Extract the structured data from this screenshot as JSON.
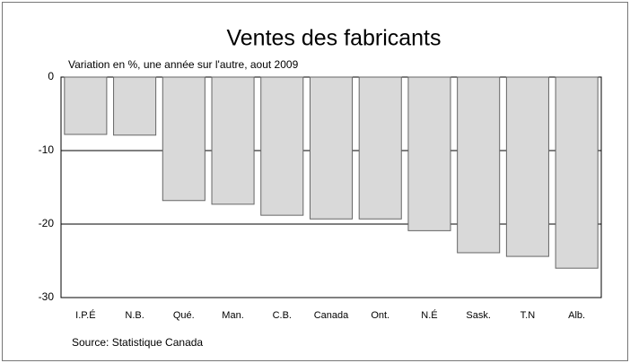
{
  "chart_data": {
    "type": "bar",
    "title": "Ventes des fabricants",
    "subtitle": "Variation en %, une année sur l'autre, aout 2009",
    "source": "Source: Statistique Canada",
    "categories": [
      "I.P.É",
      "N.B.",
      "Qué.",
      "Man.",
      "C.B.",
      "Canada",
      "Ont.",
      "N.É",
      "Sask.",
      "T.N",
      "Alb."
    ],
    "values": [
      -7.8,
      -7.9,
      -16.8,
      -17.3,
      -18.8,
      -19.3,
      -19.3,
      -20.9,
      -23.9,
      -24.4,
      -26.0
    ],
    "color": "#d9d9d9",
    "ylim": [
      -30,
      0
    ],
    "yticks": [
      0,
      -10,
      -20,
      -30
    ],
    "grid": true
  }
}
